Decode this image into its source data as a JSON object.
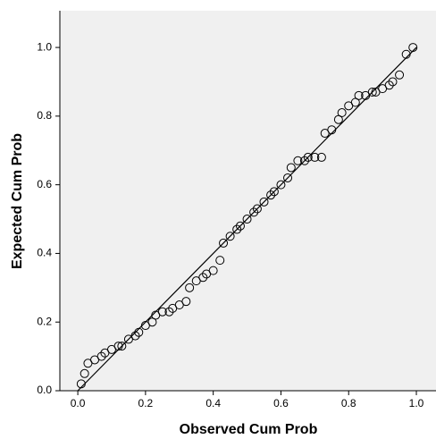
{
  "chart_data": {
    "type": "scatter",
    "x_label": "Observed Cum Prob",
    "y_label": "Expected Cum Prob",
    "xlim": [
      -0.053,
      1.058
    ],
    "ylim": [
      0,
      1.107
    ],
    "xticks": [
      {
        "value": 0,
        "label": "0.0"
      },
      0.2,
      0.4,
      0.6,
      0.8,
      {
        "value": 1,
        "label": "1.0"
      }
    ],
    "yticks": [
      {
        "value": 0,
        "label": "0.0"
      },
      0.2,
      0.4,
      0.6,
      0.8,
      {
        "value": 1,
        "label": "1.0"
      }
    ],
    "reference_line": {
      "x": [
        0,
        1
      ],
      "y": [
        0,
        1
      ]
    },
    "x": [
      0.01,
      0.02,
      0.03,
      0.05,
      0.07,
      0.08,
      0.1,
      0.12,
      0.13,
      0.15,
      0.17,
      0.18,
      0.2,
      0.22,
      0.23,
      0.25,
      0.27,
      0.28,
      0.3,
      0.32,
      0.33,
      0.35,
      0.37,
      0.38,
      0.4,
      0.42,
      0.43,
      0.45,
      0.47,
      0.48,
      0.5,
      0.52,
      0.53,
      0.55,
      0.57,
      0.58,
      0.6,
      0.62,
      0.63,
      0.65,
      0.67,
      0.68,
      0.7,
      0.72,
      0.73,
      0.75,
      0.77,
      0.78,
      0.8,
      0.82,
      0.83,
      0.85,
      0.87,
      0.88,
      0.9,
      0.92,
      0.93,
      0.95,
      0.97,
      0.99
    ],
    "values": [
      0.02,
      0.05,
      0.08,
      0.09,
      0.1,
      0.11,
      0.12,
      0.13,
      0.13,
      0.15,
      0.16,
      0.17,
      0.19,
      0.2,
      0.22,
      0.23,
      0.23,
      0.24,
      0.25,
      0.26,
      0.3,
      0.32,
      0.33,
      0.34,
      0.35,
      0.38,
      0.43,
      0.45,
      0.47,
      0.48,
      0.5,
      0.52,
      0.53,
      0.55,
      0.57,
      0.58,
      0.6,
      0.62,
      0.65,
      0.67,
      0.67,
      0.68,
      0.68,
      0.68,
      0.75,
      0.76,
      0.79,
      0.81,
      0.83,
      0.84,
      0.86,
      0.86,
      0.87,
      0.87,
      0.88,
      0.89,
      0.9,
      0.92,
      0.98,
      1.0
    ]
  }
}
